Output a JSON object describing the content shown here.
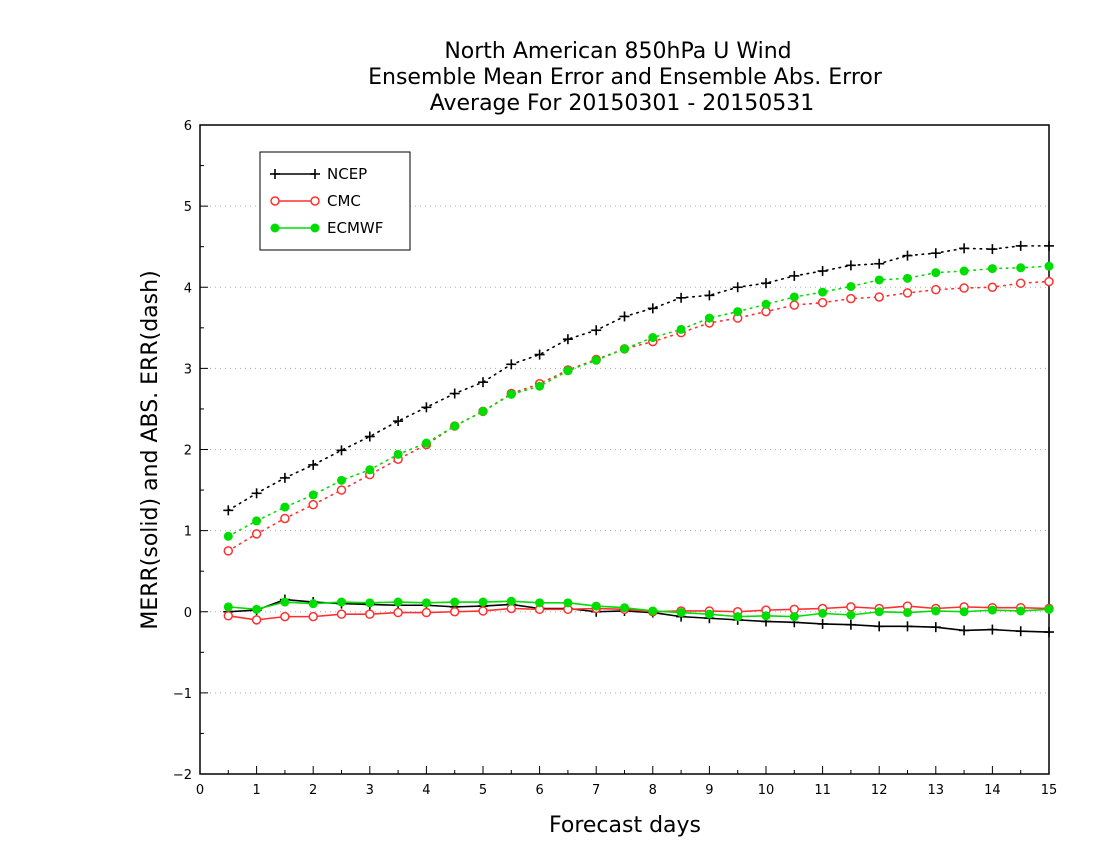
{
  "chart_data": {
    "type": "line",
    "title": [
      "North American 850hPa U Wind",
      "Ensemble Mean Error and Ensemble Abs. Error",
      "Average For 20150301 - 20150531"
    ],
    "xlabel": "Forecast days",
    "ylabel": "MERR(solid) and ABS. ERR(dash)",
    "xlim": [
      0,
      15
    ],
    "ylim": [
      -2,
      6
    ],
    "x_ticks": [
      0,
      1,
      2,
      3,
      4,
      5,
      6,
      7,
      8,
      9,
      10,
      11,
      12,
      13,
      14,
      15
    ],
    "y_ticks": [
      -2,
      -1,
      0,
      1,
      2,
      3,
      4,
      5,
      6
    ],
    "grid": "horizontal dotted",
    "legend_position": "top-left",
    "x": [
      0.5,
      1,
      1.5,
      2,
      2.5,
      3,
      3.5,
      4,
      4.5,
      5,
      5.5,
      6,
      6.5,
      7,
      7.5,
      8,
      8.5,
      9,
      9.5,
      10,
      10.5,
      11,
      11.5,
      12,
      12.5,
      13,
      13.5,
      14,
      14.5,
      15
    ],
    "series": [
      {
        "name": "NCEP",
        "color": "#000000",
        "marker": "plus",
        "abs_err": [
          1.25,
          1.46,
          1.65,
          1.81,
          1.99,
          2.16,
          2.35,
          2.52,
          2.69,
          2.83,
          3.05,
          3.17,
          3.36,
          3.47,
          3.64,
          3.74,
          3.87,
          3.9,
          4.0,
          4.05,
          4.14,
          4.2,
          4.27,
          4.29,
          4.39,
          4.42,
          4.48,
          4.47,
          4.51,
          4.51
        ],
        "mean_err": [
          0.0,
          0.02,
          0.15,
          0.12,
          0.1,
          0.09,
          0.08,
          0.08,
          0.06,
          0.07,
          0.09,
          0.04,
          0.04,
          0.0,
          0.01,
          -0.01,
          -0.06,
          -0.08,
          -0.1,
          -0.12,
          -0.13,
          -0.15,
          -0.16,
          -0.18,
          -0.18,
          -0.19,
          -0.23,
          -0.22,
          -0.24,
          -0.25
        ]
      },
      {
        "name": "CMC",
        "color": "#ff3030",
        "marker": "open-circle",
        "abs_err": [
          0.75,
          0.96,
          1.15,
          1.32,
          1.5,
          1.69,
          1.88,
          2.06,
          2.29,
          2.47,
          2.69,
          2.81,
          2.98,
          3.11,
          3.24,
          3.33,
          3.44,
          3.56,
          3.62,
          3.7,
          3.78,
          3.81,
          3.86,
          3.88,
          3.93,
          3.97,
          3.99,
          4.0,
          4.05,
          4.07
        ],
        "mean_err": [
          -0.05,
          -0.1,
          -0.06,
          -0.06,
          -0.03,
          -0.03,
          -0.01,
          -0.01,
          0.0,
          0.01,
          0.04,
          0.03,
          0.03,
          0.04,
          0.03,
          0.0,
          0.01,
          0.01,
          0.0,
          0.02,
          0.03,
          0.04,
          0.06,
          0.04,
          0.07,
          0.04,
          0.06,
          0.05,
          0.05,
          0.04
        ]
      },
      {
        "name": "ECMWF",
        "color": "#00dd00",
        "marker": "filled-circle",
        "abs_err": [
          0.93,
          1.12,
          1.29,
          1.44,
          1.62,
          1.75,
          1.94,
          2.08,
          2.29,
          2.47,
          2.68,
          2.78,
          2.97,
          3.1,
          3.24,
          3.38,
          3.48,
          3.62,
          3.7,
          3.79,
          3.88,
          3.94,
          4.01,
          4.09,
          4.11,
          4.18,
          4.2,
          4.23,
          4.24,
          4.26
        ],
        "mean_err": [
          0.06,
          0.03,
          0.12,
          0.1,
          0.12,
          0.11,
          0.12,
          0.11,
          0.12,
          0.12,
          0.13,
          0.11,
          0.11,
          0.07,
          0.05,
          0.01,
          -0.01,
          -0.03,
          -0.06,
          -0.05,
          -0.06,
          -0.02,
          -0.04,
          0.0,
          -0.01,
          0.01,
          0.0,
          0.02,
          0.01,
          0.03
        ]
      }
    ]
  }
}
